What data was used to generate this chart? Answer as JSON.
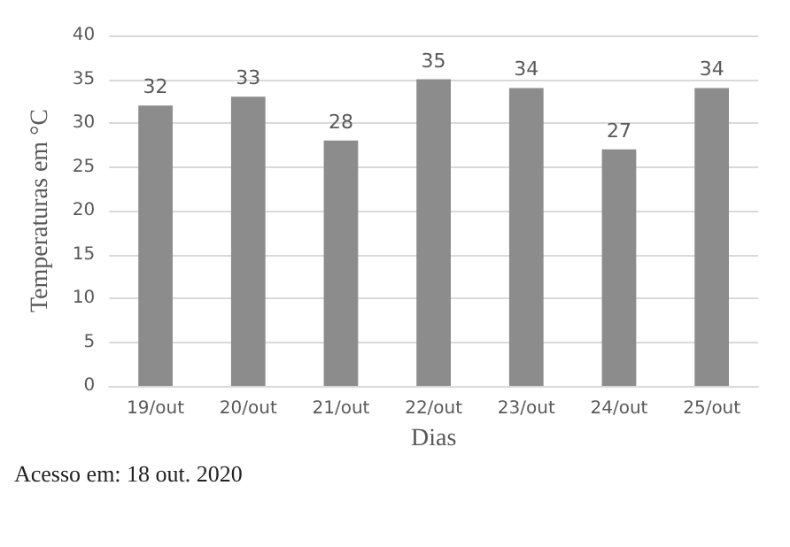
{
  "chart_data": {
    "type": "bar",
    "xlabel": "Dias",
    "ylabel": "Temperaturas em °C",
    "categories": [
      "19/out",
      "20/out",
      "21/out",
      "22/out",
      "23/out",
      "24/out",
      "25/out"
    ],
    "values": [
      32,
      33,
      28,
      35,
      34,
      27,
      34
    ],
    "color": "#8c8c8c",
    "ylim": [
      0,
      40
    ],
    "yticks": [
      0,
      5,
      10,
      15,
      20,
      25,
      30,
      35,
      40
    ],
    "grid": "y",
    "data_labels": true,
    "annotations": [
      "Acesso em: 18 out. 2020"
    ]
  }
}
